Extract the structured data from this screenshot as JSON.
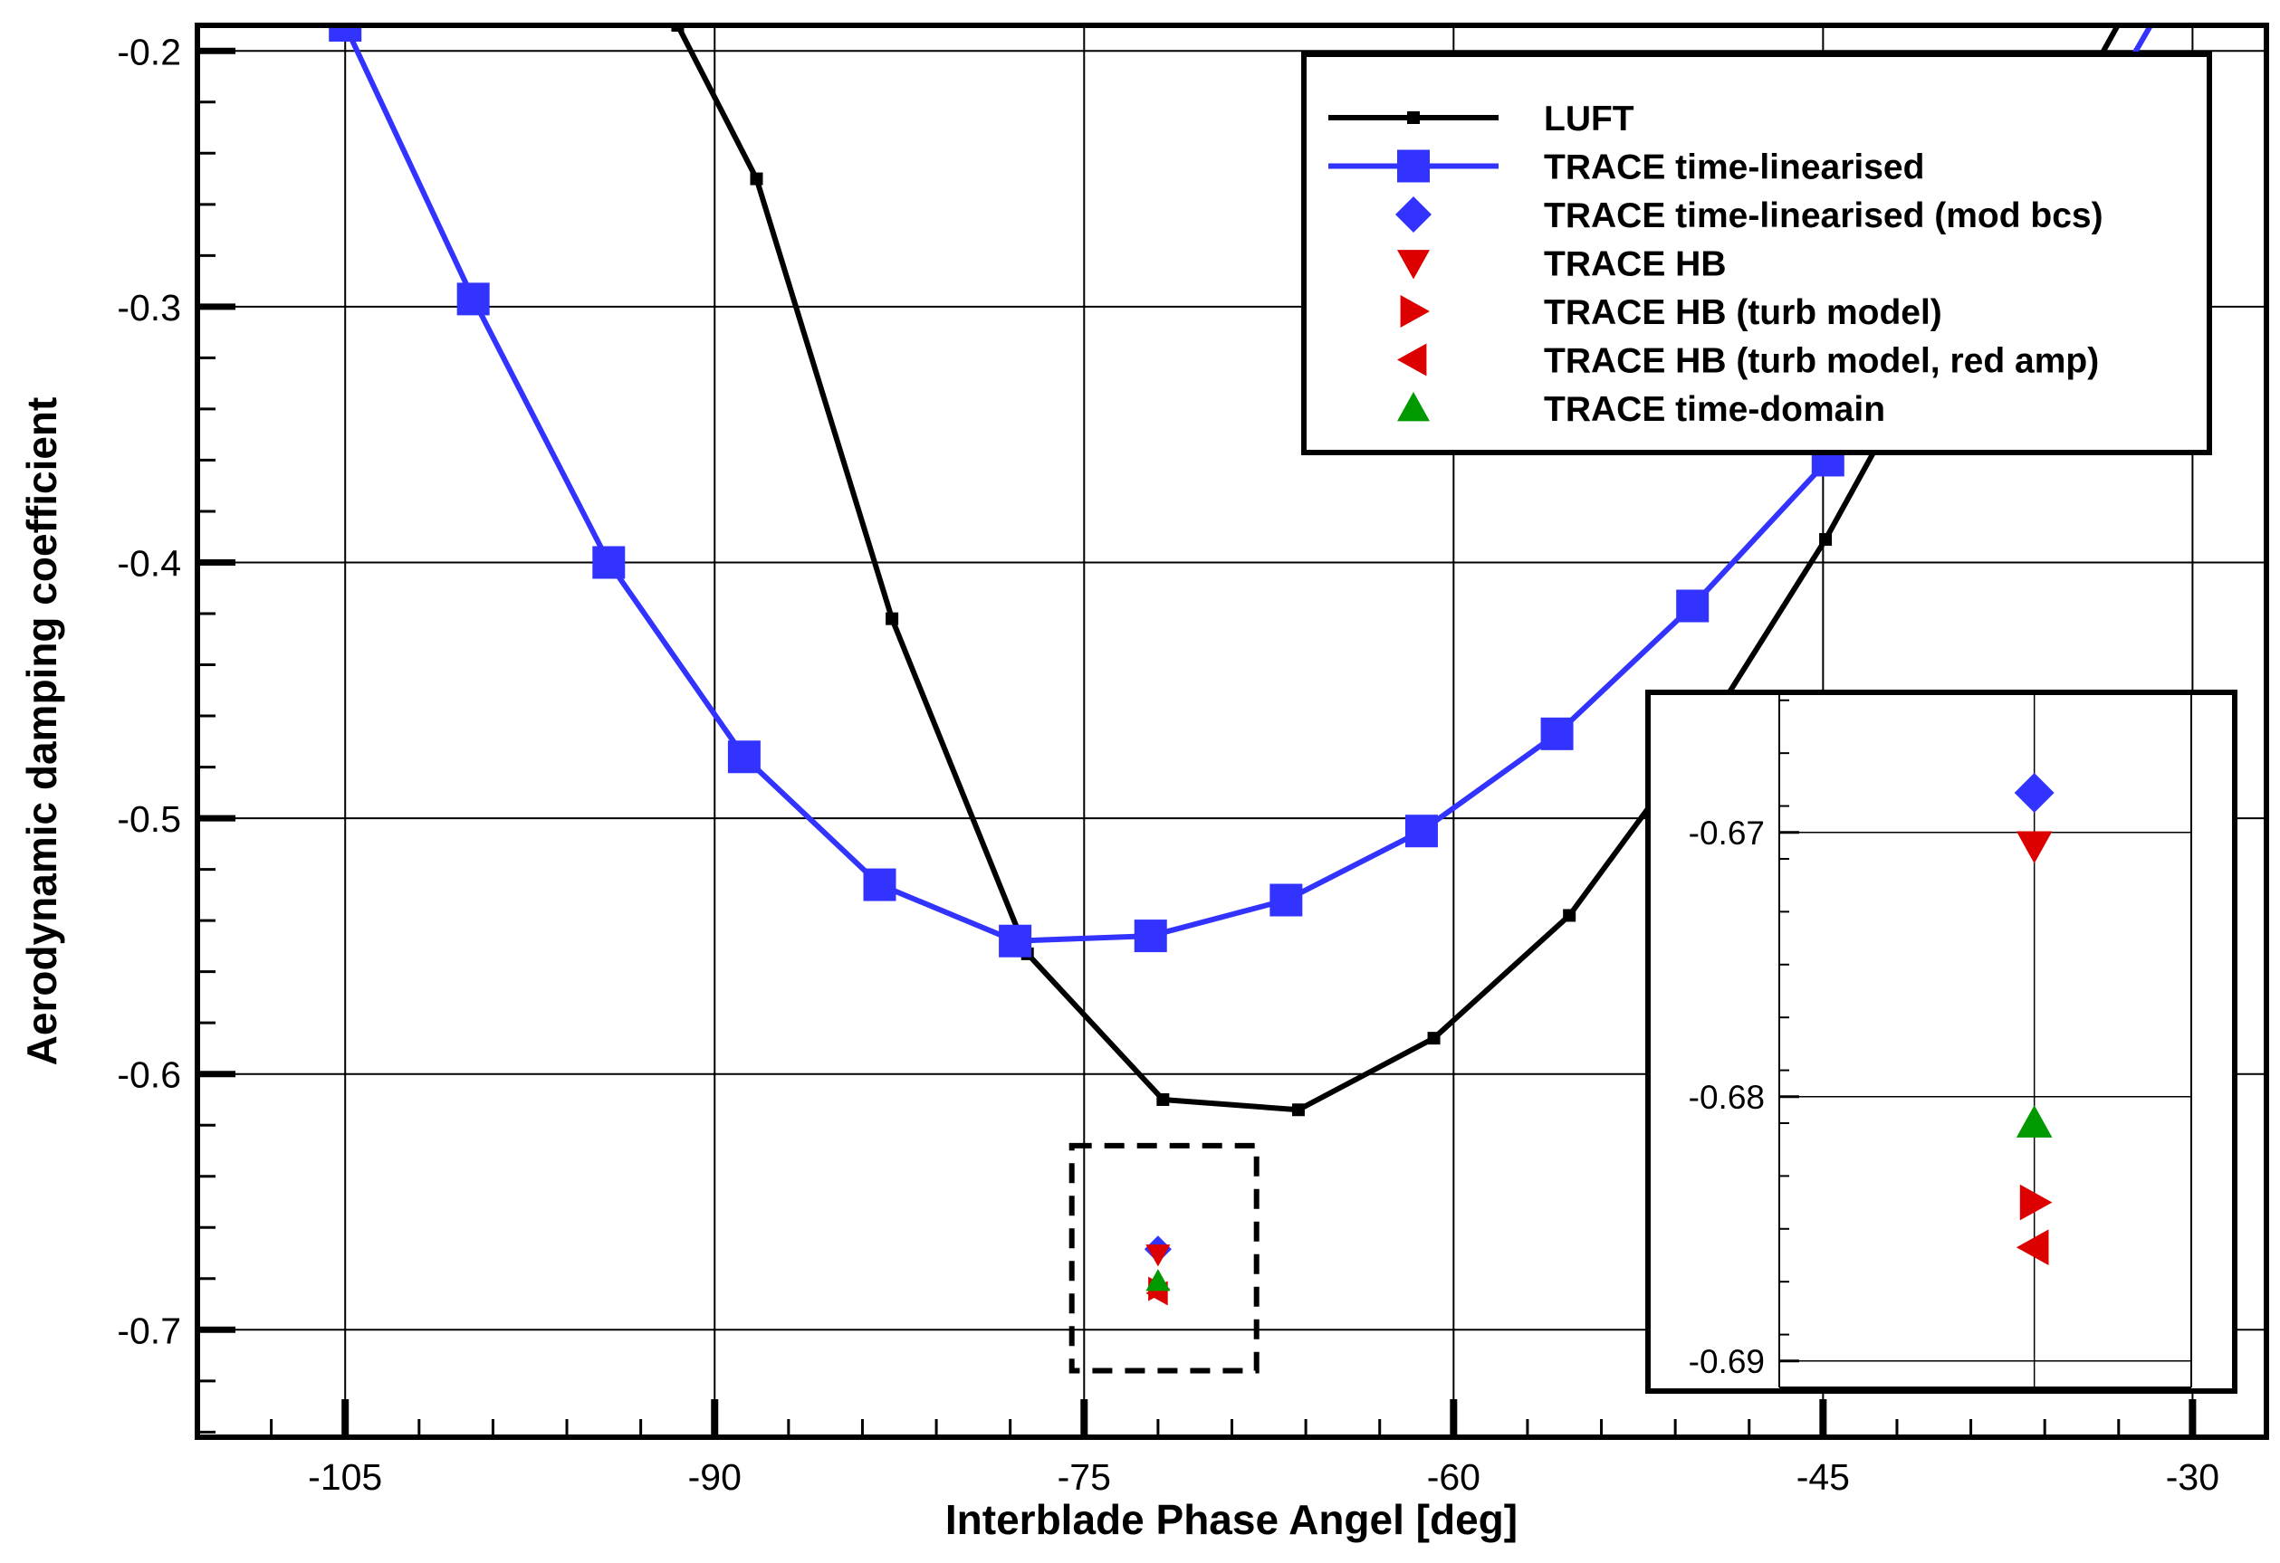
{
  "chart_data": {
    "type": "line",
    "title": "",
    "xlabel": "Interblade Phase Angel [deg]",
    "ylabel": "Aerodynamic damping coefficient",
    "xlim": [
      -111,
      -27
    ],
    "ylim": [
      -0.742,
      -0.19
    ],
    "xticks": [
      -105,
      -90,
      -75,
      -60,
      -45,
      -30
    ],
    "xtick_labels": [
      "-105",
      "-90",
      "-75",
      "-60",
      "-45",
      "-30"
    ],
    "yticks": [
      -0.2,
      -0.3,
      -0.4,
      -0.5,
      -0.6,
      -0.7
    ],
    "ytick_labels": [
      "-0.2",
      "-0.3",
      "-0.4",
      "-0.5",
      "-0.6",
      "-0.7"
    ],
    "grid": true,
    "legend_position": "top-right",
    "series": [
      {
        "name": "LUFT",
        "color": "#000000",
        "marker": "square-small",
        "line": true,
        "x": [
          -91.5,
          -88.3,
          -82.8,
          -77.3,
          -71.8,
          -66.3,
          -60.8,
          -55.3,
          -49.8,
          -44.9,
          -39.4,
          -33.9,
          -29.0
        ],
        "y": [
          -0.19,
          -0.25,
          -0.422,
          -0.553,
          -0.61,
          -0.614,
          -0.586,
          -0.538,
          -0.466,
          -0.391,
          -0.295,
          -0.205,
          -0.12
        ]
      },
      {
        "name": "TRACE time-linearised",
        "color": "#3333ff",
        "marker": "square",
        "line": true,
        "x": [
          -105.0,
          -99.8,
          -94.3,
          -88.8,
          -83.3,
          -77.8,
          -72.3,
          -66.8,
          -61.3,
          -55.8,
          -50.3,
          -44.8,
          -39.3,
          -33.8,
          -30.5
        ],
        "y": [
          -0.19,
          -0.297,
          -0.4,
          -0.476,
          -0.526,
          -0.548,
          -0.546,
          -0.532,
          -0.505,
          -0.467,
          -0.417,
          -0.36,
          -0.295,
          -0.225,
          -0.17
        ]
      },
      {
        "name": "TRACE time-linearised (mod bcs)",
        "color": "#3333ff",
        "marker": "diamond",
        "line": false,
        "x": [
          -72.0
        ],
        "y": [
          -0.6685
        ]
      },
      {
        "name": "TRACE HB",
        "color": "#dd0000",
        "marker": "triangle-down",
        "line": false,
        "x": [
          -72.0
        ],
        "y": [
          -0.6705
        ]
      },
      {
        "name": "TRACE HB (turb model)",
        "color": "#dd0000",
        "marker": "triangle-right",
        "line": false,
        "x": [
          -72.0
        ],
        "y": [
          -0.684
        ]
      },
      {
        "name": "TRACE HB (turb model, red amp)",
        "color": "#dd0000",
        "marker": "triangle-left",
        "line": false,
        "x": [
          -72.0
        ],
        "y": [
          -0.6857
        ]
      },
      {
        "name": "TRACE time-domain",
        "color": "#009900",
        "marker": "triangle-up",
        "line": false,
        "x": [
          -72.0
        ],
        "y": [
          -0.681
        ]
      }
    ],
    "inset": {
      "xlim": [
        -72.26,
        -71.84
      ],
      "ylim": [
        -0.691,
        -0.6647
      ],
      "yticks": [
        -0.67,
        -0.68,
        -0.69
      ],
      "ytick_labels": [
        "-0.67",
        "-0.68",
        "-0.69"
      ],
      "xticks": [
        -72.0
      ],
      "grid": true,
      "zoom_region_x": [
        -75.5,
        -68.0
      ],
      "zoom_region_y": [
        -0.716,
        -0.628
      ],
      "zoom_region_style": "dashed"
    }
  }
}
